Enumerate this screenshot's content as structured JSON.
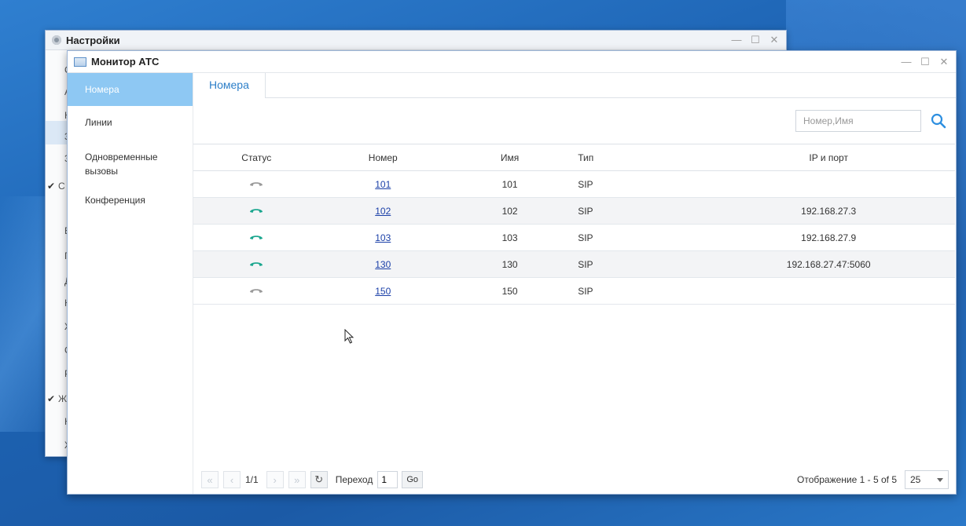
{
  "settings_window": {
    "title": "Настройки",
    "controls": [
      "—",
      "☐",
      "✕"
    ],
    "sidebar_fragments": [
      "C",
      "A",
      "H",
      "3",
      "3",
      "C",
      "B",
      "Г",
      "Д",
      "H",
      "Ж",
      "C",
      "P",
      "Ж",
      "H",
      "Ж"
    ]
  },
  "monitor_window": {
    "title": "Монитор АТС",
    "controls": [
      "—",
      "☐",
      "✕"
    ]
  },
  "sidebar": {
    "items": [
      {
        "label": "Номера",
        "active": true
      },
      {
        "label": "Линии",
        "active": false
      },
      {
        "label": "Одновременные вызовы",
        "active": false
      },
      {
        "label": "Конференция",
        "active": false
      }
    ]
  },
  "tabs": [
    {
      "label": "Номера",
      "active": true
    }
  ],
  "search": {
    "placeholder": "Номер,Имя",
    "value": "",
    "icon": "search-icon"
  },
  "table": {
    "columns": [
      "Статус",
      "Номер",
      "Имя",
      "Тип",
      "IP и порт"
    ],
    "rows": [
      {
        "status": "offline",
        "number": "101",
        "name": "101",
        "type": "SIP",
        "ip": ""
      },
      {
        "status": "online",
        "number": "102",
        "name": "102",
        "type": "SIP",
        "ip": "192.168.27.3"
      },
      {
        "status": "online",
        "number": "103",
        "name": "103",
        "type": "SIP",
        "ip": "192.168.27.9"
      },
      {
        "status": "online",
        "number": "130",
        "name": "130",
        "type": "SIP",
        "ip": "192.168.27.47:5060"
      },
      {
        "status": "offline",
        "number": "150",
        "name": "150",
        "type": "SIP",
        "ip": ""
      }
    ]
  },
  "pager": {
    "page_info": "1/1",
    "goto_label": "Переход",
    "goto_value": "1",
    "go_label": "Go",
    "display_info": "Отображение 1 - 5 of 5",
    "page_size": "25"
  },
  "colors": {
    "online": "#1aa68e",
    "offline": "#9a9a9a",
    "active_tab_text": "#2d7fc8",
    "sidebar_active_bg": "#8ec8f3",
    "link": "#1a3fa8"
  }
}
